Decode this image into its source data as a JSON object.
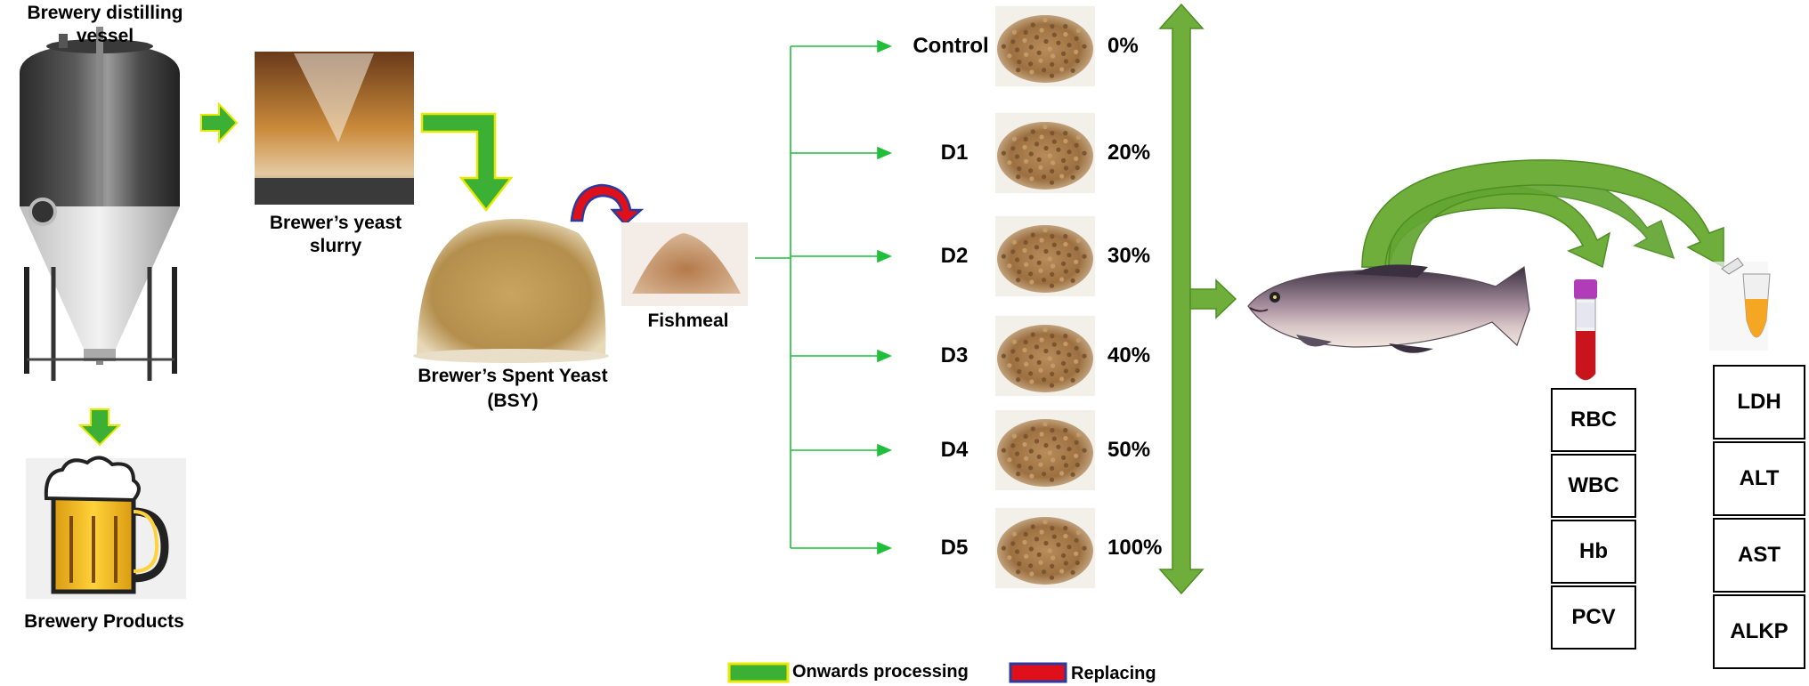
{
  "labels": {
    "vessel": "Brewery distilling vessel",
    "slurry_line1": "Brewer’s yeast",
    "slurry_line2": "slurry",
    "bsy_line1": "Brewer’s Spent Yeast",
    "bsy_line2": "(BSY)",
    "fishmeal": "Fishmeal",
    "products": "Brewery Products"
  },
  "diets": [
    {
      "name": "Control",
      "percent": "0%"
    },
    {
      "name": "D1",
      "percent": "20%"
    },
    {
      "name": "D2",
      "percent": "30%"
    },
    {
      "name": "D3",
      "percent": "40%"
    },
    {
      "name": "D4",
      "percent": "50%"
    },
    {
      "name": "D5",
      "percent": "100%"
    }
  ],
  "blood_params": [
    "RBC",
    "WBC",
    "Hb",
    "PCV"
  ],
  "enzyme_params": [
    "LDH",
    "ALT",
    "AST",
    "ALKP"
  ],
  "legend": {
    "onwards": "Onwards processing",
    "replacing": "Replacing"
  },
  "colors": {
    "arrow_green": "#5fa62f",
    "flow_green": "#1fbf3a",
    "arrow_outline": "#e8e800",
    "replace_red": "#e0101a",
    "replace_outline": "#2a3aa0"
  }
}
